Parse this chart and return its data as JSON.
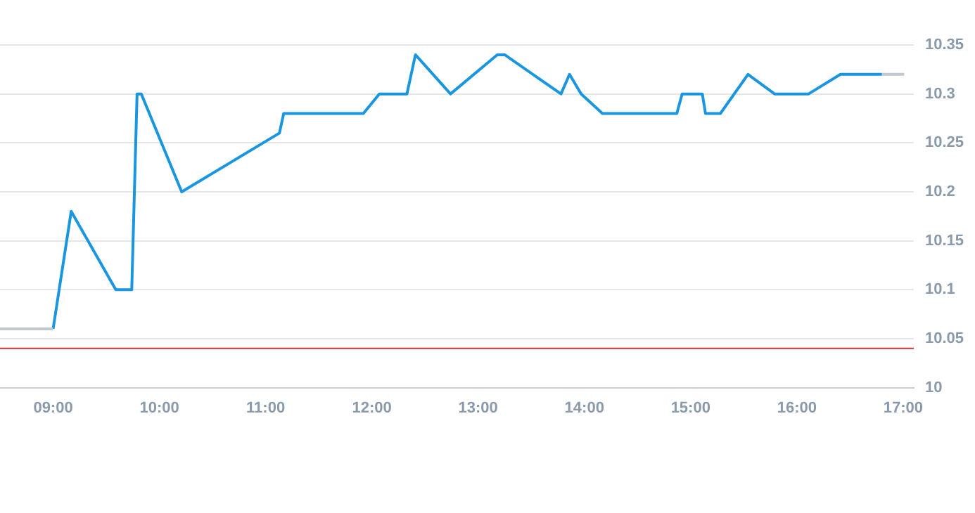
{
  "chart_data": {
    "type": "line",
    "xlim": [
      8.5,
      17.1
    ],
    "ylim": [
      10,
      10.35
    ],
    "xticks": [
      {
        "value": 9,
        "label": "09:00"
      },
      {
        "value": 10,
        "label": "10:00"
      },
      {
        "value": 11,
        "label": "11:00"
      },
      {
        "value": 12,
        "label": "12:00"
      },
      {
        "value": 13,
        "label": "13:00"
      },
      {
        "value": 14,
        "label": "14:00"
      },
      {
        "value": 15,
        "label": "15:00"
      },
      {
        "value": 16,
        "label": "16:00"
      },
      {
        "value": 17,
        "label": "17:00"
      }
    ],
    "yticks": [
      10,
      10.05,
      10.1,
      10.15,
      10.2,
      10.25,
      10.3,
      10.35
    ],
    "grid": "y",
    "legend": false,
    "marker": "none",
    "ref_lines": [
      {
        "axis": "y",
        "value": 10.04,
        "color": "#d03030"
      }
    ],
    "series": [
      {
        "color": "#c0c8d2",
        "x": [
          8.5,
          9
        ],
        "values": [
          10.06,
          10.06
        ]
      },
      {
        "color": "#1a96e0",
        "x": [
          9,
          9.17,
          9.59,
          9.74,
          9.79,
          9.83,
          10.21,
          11.13,
          11.17,
          11.92,
          12.07,
          12.33,
          12.41,
          12.74,
          13.18,
          13.25,
          13.78,
          13.86,
          13.97,
          14.17,
          14.87,
          14.92,
          15.11,
          15.14,
          15.28,
          15.54,
          15.79,
          16.11,
          16.41,
          16.8
        ],
        "values": [
          10.06,
          10.18,
          10.1,
          10.1,
          10.3,
          10.3,
          10.2,
          10.26,
          10.28,
          10.28,
          10.3,
          10.3,
          10.34,
          10.3,
          10.34,
          10.34,
          10.3,
          10.32,
          10.3,
          10.28,
          10.28,
          10.3,
          10.3,
          10.28,
          10.28,
          10.32,
          10.3,
          10.3,
          10.32,
          10.32
        ]
      },
      {
        "color": "#c0c8d2",
        "x": [
          16.8,
          17.01
        ],
        "values": [
          10.32,
          10.32
        ]
      }
    ]
  }
}
